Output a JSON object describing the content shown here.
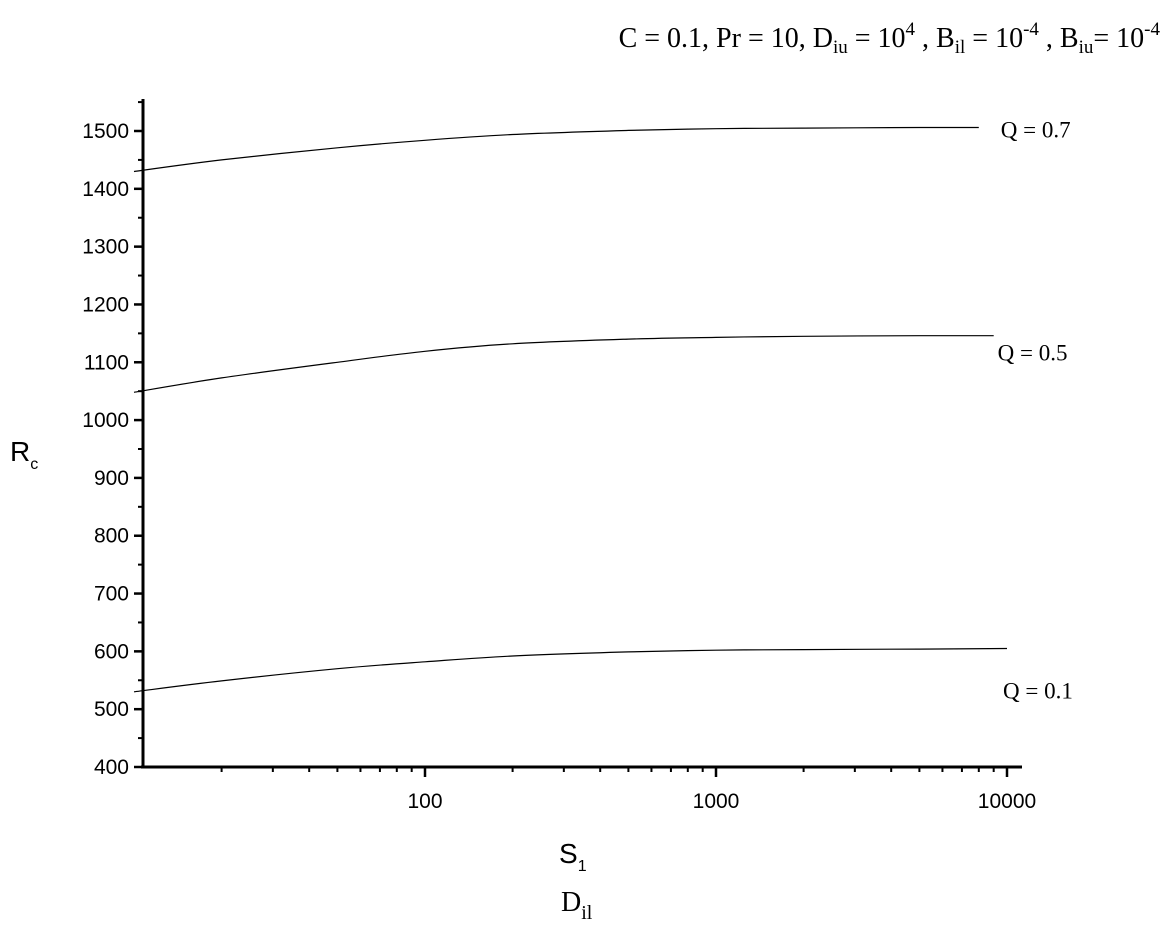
{
  "chart_data": {
    "type": "line",
    "title_parts": [
      {
        "text": "C = 0.1, Pr = 10, D"
      },
      {
        "text": "iu",
        "baseline": "sub"
      },
      {
        "text": " = 10"
      },
      {
        "text": "4",
        "baseline": "super"
      },
      {
        "text": " , B"
      },
      {
        "text": "il",
        "baseline": "sub"
      },
      {
        "text": " = 10"
      },
      {
        "text": "-4",
        "baseline": "super"
      },
      {
        "text": " , B"
      },
      {
        "text": "iu",
        "baseline": "sub"
      },
      {
        "text": "= 10"
      },
      {
        "text": "-4",
        "baseline": "super"
      }
    ],
    "xlabel": {
      "main": "S",
      "sub": "1"
    },
    "ylabel": {
      "main": "R",
      "sub": "c"
    },
    "caption": {
      "main": "D",
      "sub": "il"
    },
    "xscale": "log",
    "xlim": [
      10,
      10000
    ],
    "ylim": [
      400,
      1550
    ],
    "x_ticks": [
      100,
      1000,
      10000
    ],
    "x_tick_labels": [
      "100",
      "1000",
      "10000"
    ],
    "y_ticks": [
      400,
      500,
      600,
      700,
      800,
      900,
      1000,
      1100,
      1200,
      1300,
      1400,
      1500
    ],
    "y_tick_labels": [
      "400",
      "500",
      "600",
      "700",
      "800",
      "900",
      "1000",
      "1100",
      "1200",
      "1300",
      "1400",
      "1500"
    ],
    "grid": false,
    "legend": "none",
    "series": [
      {
        "label": "Q = 0.7",
        "x": [
          10,
          20,
          50,
          100,
          200,
          500,
          1000,
          2000,
          5000,
          8000
        ],
        "y": [
          1430,
          1450,
          1471,
          1484,
          1494,
          1501,
          1504,
          1505,
          1506,
          1506
        ]
      },
      {
        "label": "Q = 0.5",
        "x": [
          10,
          20,
          50,
          100,
          200,
          500,
          1000,
          2000,
          5000,
          9000
        ],
        "y": [
          1048,
          1073,
          1100,
          1119,
          1132,
          1140,
          1143,
          1145,
          1146,
          1146
        ]
      },
      {
        "label": "Q = 0.1",
        "x": [
          10,
          20,
          50,
          100,
          200,
          500,
          1000,
          2000,
          5000,
          10000
        ],
        "y": [
          530,
          549,
          570,
          582,
          592,
          599,
          602,
          603,
          604,
          605
        ]
      }
    ]
  }
}
